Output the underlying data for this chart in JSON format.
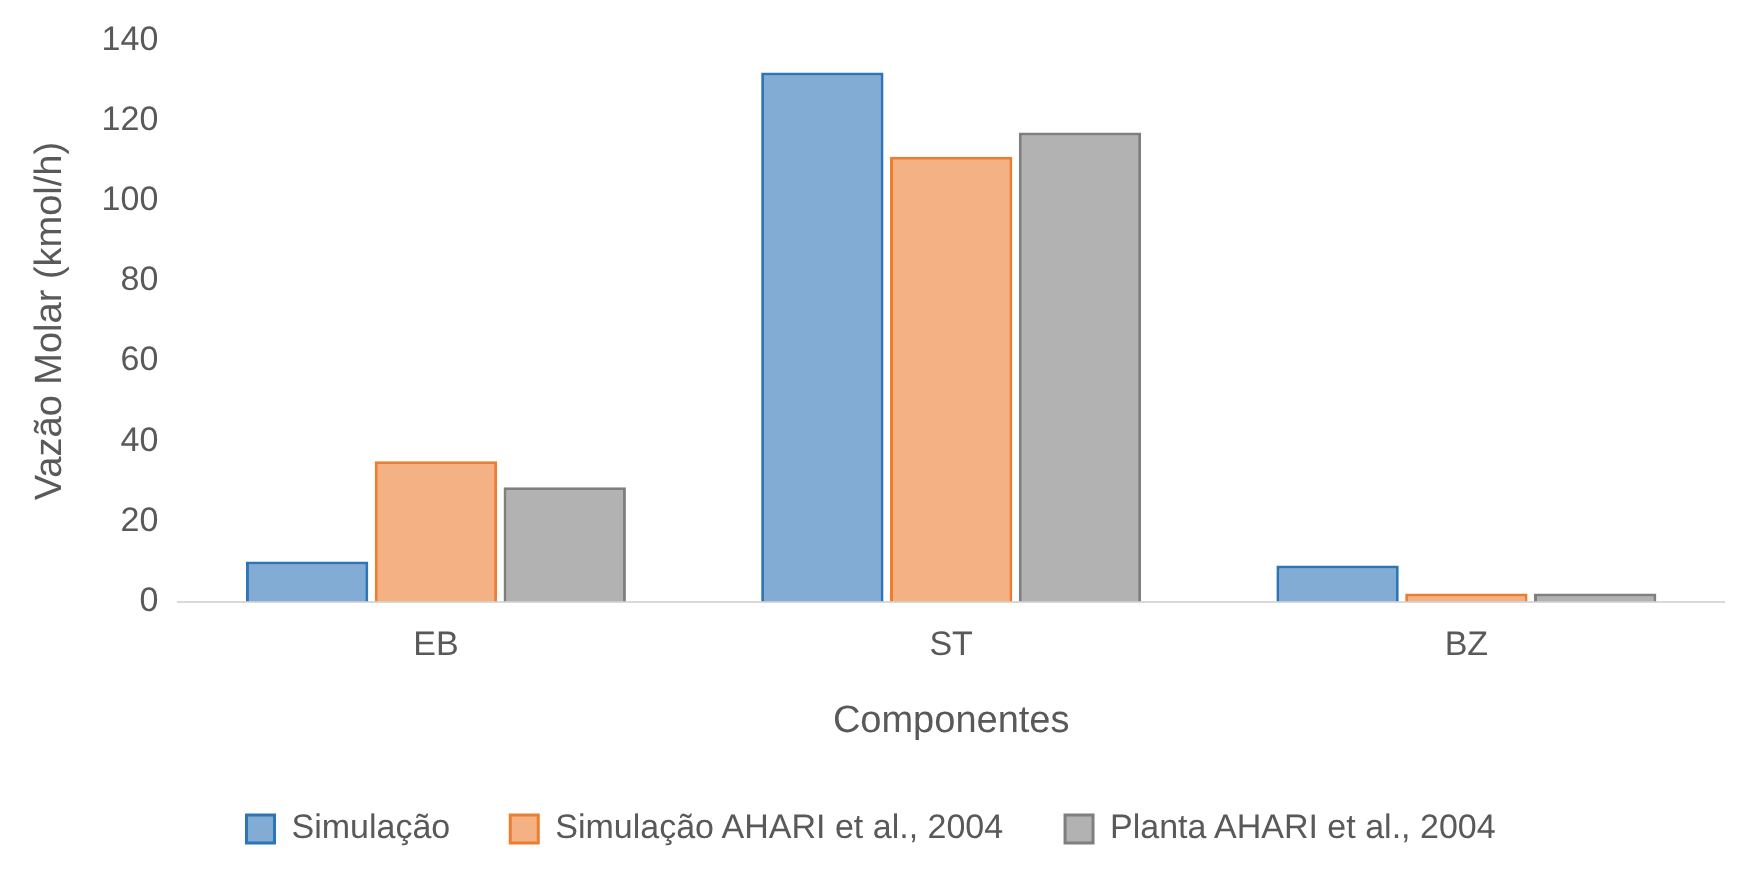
{
  "chart_data": {
    "type": "bar",
    "xlabel": "Componentes",
    "ylabel": "Vazão Molar (kmol/h)",
    "categories": [
      "EB",
      "ST",
      "BZ"
    ],
    "series": [
      {
        "name": "Simulação",
        "color": "#2e75b6",
        "values": [
          10,
          132,
          9
        ]
      },
      {
        "name": "Simulação AHARI et al., 2004",
        "color": "#ed7d31",
        "values": [
          35,
          111,
          2
        ]
      },
      {
        "name": "Planta AHARI et al., 2004",
        "color": "#7f7f7f",
        "values": [
          28.5,
          117,
          2
        ]
      }
    ],
    "ylim": [
      0,
      140
    ],
    "yticks": [
      0,
      20,
      40,
      60,
      80,
      100,
      120,
      140
    ],
    "grid": false,
    "legend": "bottom"
  }
}
